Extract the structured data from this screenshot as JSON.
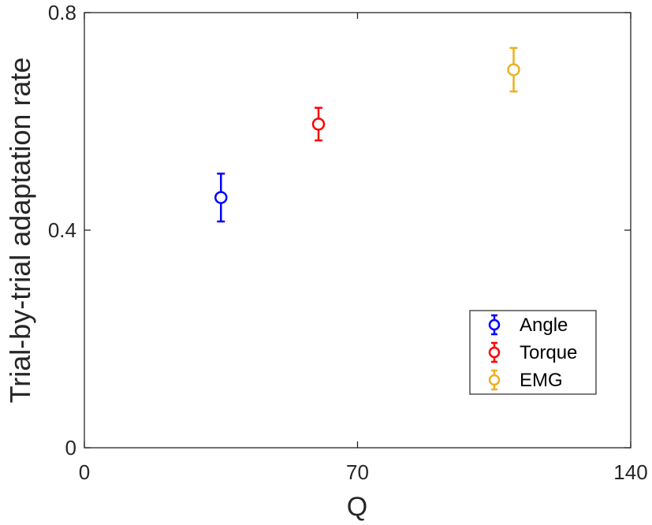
{
  "chart_data": {
    "type": "scatter",
    "xlabel": "Q",
    "ylabel": "Trial-by-trial adaptation rate",
    "xlim": [
      0,
      140
    ],
    "ylim": [
      0,
      0.8
    ],
    "xticks": [
      "0",
      "70",
      "140"
    ],
    "yticks": [
      "0",
      "0.4",
      "0.8"
    ],
    "grid": false,
    "legend_position": "bottom-right",
    "series": [
      {
        "name": "Angle",
        "color": "#0000ff",
        "x": 35,
        "y": 0.46,
        "error": 0.044,
        "marker": "circle"
      },
      {
        "name": "Torque",
        "color": "#ff0000",
        "x": 60,
        "y": 0.595,
        "error": 0.03,
        "marker": "circle"
      },
      {
        "name": "EMG",
        "color": "#edb120",
        "x": 110,
        "y": 0.695,
        "error": 0.04,
        "marker": "circle"
      }
    ]
  }
}
